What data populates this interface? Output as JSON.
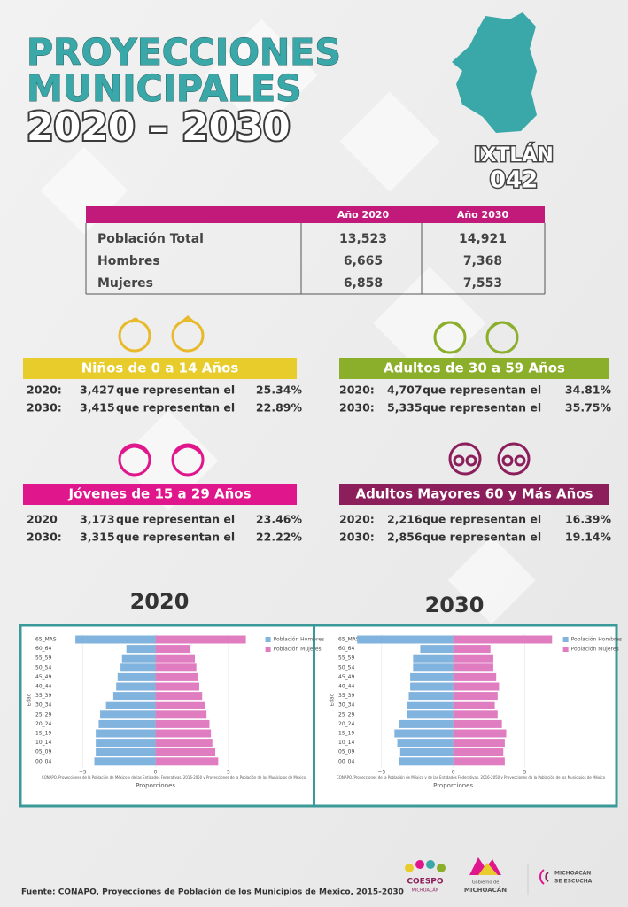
{
  "header": {
    "line1": "PROYECCIONES",
    "line2": "MUNICIPALES",
    "line3": "2020 – 2030",
    "municipality": "IXTLÁN",
    "code": "042"
  },
  "table": {
    "columns": [
      "Año 2020",
      "Año 2030"
    ],
    "rows": [
      [
        "Población Total",
        "13,523",
        "14,921"
      ],
      [
        "Hombres",
        "6,665",
        "7,368"
      ],
      [
        "Mujeres",
        "6,858",
        "7,553"
      ]
    ]
  },
  "sections": [
    {
      "title": "Niños de 0 a 14 Años",
      "color": "#e8cc2c",
      "rows": [
        [
          "2020:",
          "3,427",
          "que representan el",
          "25.34%"
        ],
        [
          "2030:",
          "3,415",
          "que representan el",
          "22.89%"
        ]
      ]
    },
    {
      "title": "Adultos de 30 a 59 Años",
      "color": "#8caf2b",
      "rows": [
        [
          "2020:",
          "4,707",
          "que representan el",
          "34.81%"
        ],
        [
          "2030:",
          "5,335",
          "que representan el",
          "35.75%"
        ]
      ]
    },
    {
      "title": "Jóvenes de 15 a 29 Años",
      "color": "#e0178c",
      "rows": [
        [
          "2020",
          "3,173",
          "que representan el",
          "23.46%"
        ],
        [
          "2030:",
          "3,315",
          "que representan el",
          "22.22%"
        ]
      ]
    },
    {
      "title": "Adultos Mayores  60 y Más Años",
      "color": "#8b1e5b",
      "rows": [
        [
          "2020:",
          "2,216",
          "que representan el",
          "16.39%"
        ],
        [
          "2030:",
          "2,856",
          "que representan el",
          "19.14%"
        ]
      ]
    }
  ],
  "chart_data": [
    {
      "type": "bar",
      "orientation": "horizontal",
      "title": "2020",
      "x_label": "Proporciones",
      "y_label": "Edad",
      "note": "CONAPO. Proyecciones de la Población de México y de las Entidades Federativas, 2016-2050 y Proyecciones de la Población de los Municipios de México",
      "categories": [
        "00_04",
        "05_09",
        "10_14",
        "15_19",
        "20_24",
        "25_29",
        "30_34",
        "35_39",
        "40_44",
        "45_49",
        "50_54",
        "55_59",
        "60_64",
        "65_MAS"
      ],
      "series": [
        {
          "name": "Población Hombres",
          "color": "#80b3dd",
          "values": [
            -4.2,
            -4.1,
            -4.1,
            -4.1,
            -3.9,
            -3.8,
            -3.4,
            -2.9,
            -2.7,
            -2.6,
            -2.4,
            -2.3,
            -2.0,
            -5.5
          ]
        },
        {
          "name": "Población Mujeres",
          "color": "#e07cc0",
          "values": [
            4.3,
            4.1,
            3.9,
            3.8,
            3.7,
            3.5,
            3.4,
            3.2,
            3.0,
            2.9,
            2.8,
            2.7,
            2.4,
            6.2
          ]
        }
      ],
      "xlim": [
        -6.6,
        10.6
      ],
      "xticks": [
        {
          "value": -5,
          "label": "−5"
        },
        0,
        5
      ],
      "grid": true
    },
    {
      "type": "bar",
      "orientation": "horizontal",
      "title": "2030",
      "x_label": "Proporciones",
      "y_label": "Edad",
      "note": "CONAPO. Proyecciones de la Población de México y de las Entidades Federativas, 2016-2050 y Proyecciones de la Población de los Municipios de México",
      "categories": [
        "00_04",
        "05_09",
        "10_14",
        "15_19",
        "20_24",
        "25_29",
        "30_34",
        "35_39",
        "40_44",
        "45_49",
        "50_54",
        "55_59",
        "60_64",
        "65_MAS"
      ],
      "series": [
        {
          "name": "Población Hombres",
          "color": "#80b3dd",
          "values": [
            -3.8,
            -3.7,
            -3.9,
            -4.1,
            -3.8,
            -3.2,
            -3.2,
            -3.1,
            -3.0,
            -3.0,
            -2.8,
            -2.8,
            -2.3,
            -6.7
          ]
        },
        {
          "name": "Población Mujeres",
          "color": "#e07cc0",
          "values": [
            3.6,
            3.5,
            3.6,
            3.7,
            3.4,
            3.1,
            2.9,
            3.1,
            3.2,
            3.0,
            2.8,
            2.8,
            2.6,
            6.9
          ]
        }
      ],
      "xlim": [
        -6.9,
        10.9
      ],
      "xticks": [
        {
          "value": -5,
          "label": "−5"
        },
        0,
        5
      ],
      "grid": true
    }
  ],
  "footer": {
    "source": "Fuente: CONAPO, Proyecciones de Población de los Municipios de México, 2015-2030",
    "logo1": "COESPO",
    "logo1b": "MICHOACÁN",
    "logo2a": "Gobierno de",
    "logo2b": "MICHOACÁN",
    "logo3a": "MICHOACÁN",
    "logo3b": "SE ESCUCHA"
  }
}
